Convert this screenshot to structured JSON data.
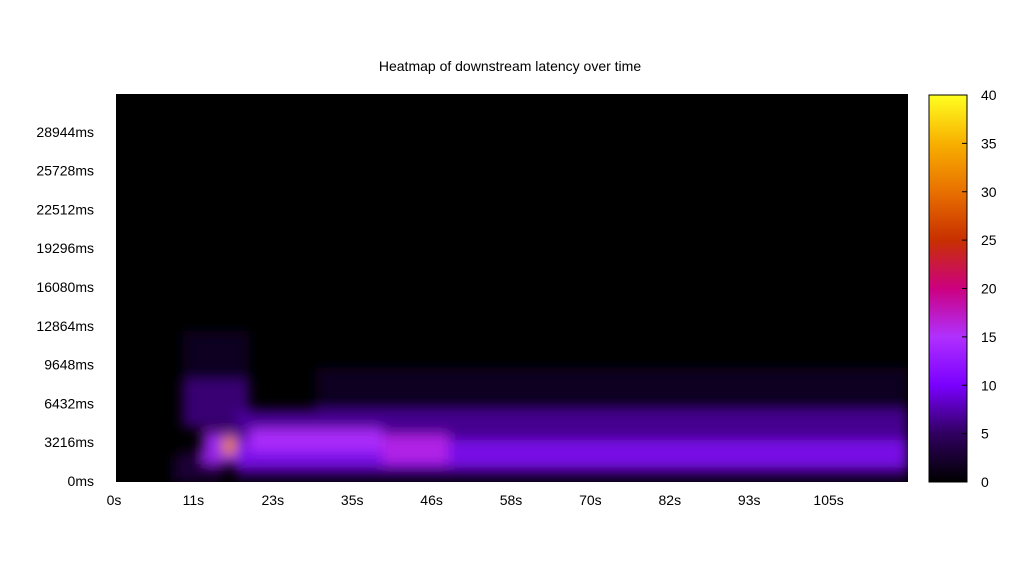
{
  "chart_data": {
    "type": "heatmap",
    "title": "Heatmap of downstream latency over time",
    "xlabel": "",
    "ylabel": "",
    "x_ticks": [
      "0s",
      "11s",
      "23s",
      "35s",
      "46s",
      "58s",
      "70s",
      "82s",
      "93s",
      "105s"
    ],
    "y_ticks": [
      "0ms",
      "3216ms",
      "6432ms",
      "9648ms",
      "12864ms",
      "16080ms",
      "19296ms",
      "22512ms",
      "25728ms",
      "28944ms"
    ],
    "colorbar_ticks": [
      "0",
      "5",
      "10",
      "15",
      "20",
      "25",
      "30",
      "35",
      "40"
    ],
    "x_range_s": [
      0,
      119
    ],
    "y_range_ms": [
      0,
      32160
    ],
    "color_range": [
      0,
      40
    ],
    "colormap": [
      "#000000",
      "#300060",
      "#7a00ff",
      "#b030ff",
      "#cc0080",
      "#c83000",
      "#e87000",
      "#f8b000",
      "#ffff20"
    ],
    "background": "#000000",
    "intensity_regions": [
      {
        "x": [
          0,
          9
        ],
        "y_ms": [
          0,
          1500
        ],
        "value": 0.3
      },
      {
        "x": [
          9,
          16
        ],
        "y_ms": [
          0,
          2500
        ],
        "value": 3
      },
      {
        "x": [
          10,
          20
        ],
        "y_ms": [
          4500,
          8500
        ],
        "value": 6
      },
      {
        "x": [
          10,
          20
        ],
        "y_ms": [
          8500,
          12500
        ],
        "value": 2
      },
      {
        "x": [
          13,
          18
        ],
        "y_ms": [
          1500,
          4200
        ],
        "value": 14
      },
      {
        "x": [
          16,
          19
        ],
        "y_ms": [
          2200,
          3800
        ],
        "value": 32
      },
      {
        "x": [
          18,
          119
        ],
        "y_ms": [
          0,
          1200
        ],
        "value": 4
      },
      {
        "x": [
          18,
          119
        ],
        "y_ms": [
          1200,
          3500
        ],
        "value": 11
      },
      {
        "x": [
          18,
          119
        ],
        "y_ms": [
          3500,
          6000
        ],
        "value": 7
      },
      {
        "x": [
          30,
          119
        ],
        "y_ms": [
          6000,
          9500
        ],
        "value": 2
      },
      {
        "x": [
          20,
          40
        ],
        "y_ms": [
          2500,
          4500
        ],
        "value": 15
      },
      {
        "x": [
          40,
          50
        ],
        "y_ms": [
          1500,
          4000
        ],
        "value": 16
      }
    ]
  }
}
